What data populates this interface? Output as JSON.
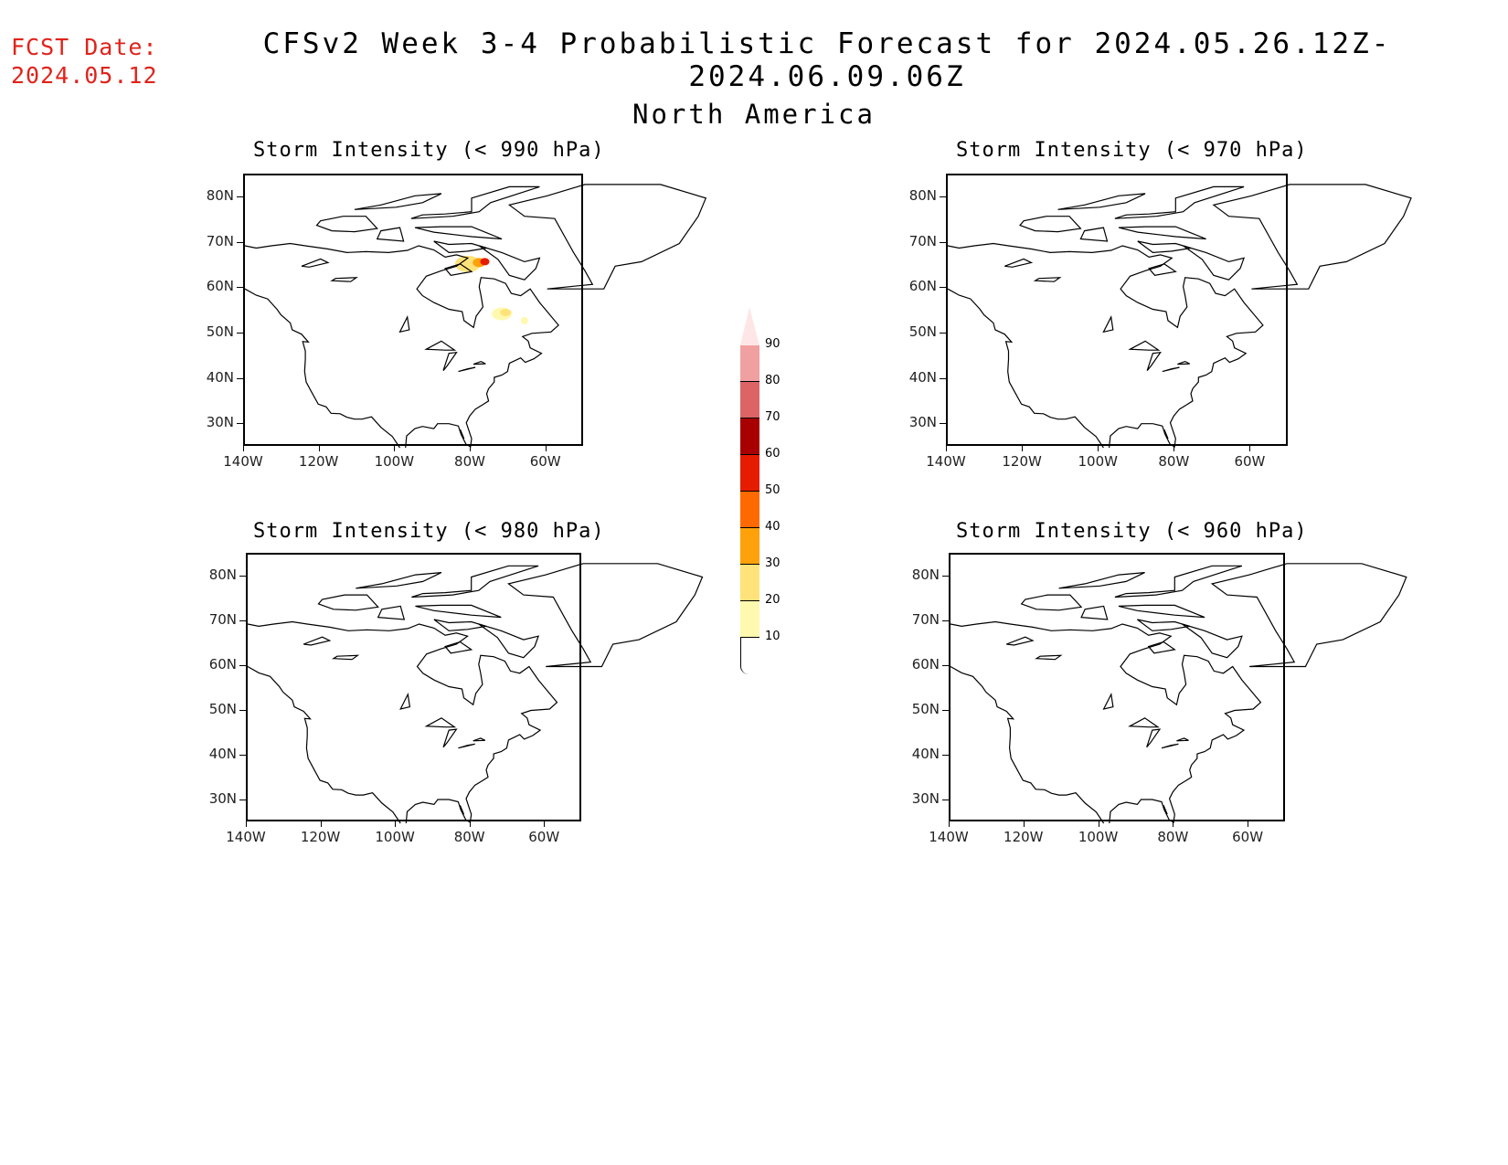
{
  "header": {
    "fcst_label": "FCST Date:",
    "fcst_date": "2024.05.12",
    "title": "CFSv2 Week 3-4 Probabilistic Forecast for 2024.05.26.12Z-2024.06.09.06Z",
    "region": "North America"
  },
  "panels": [
    {
      "title": "Storm Intensity (< 990 hPa)",
      "has_data": true
    },
    {
      "title": "Storm Intensity (< 970 hPa)",
      "has_data": false
    },
    {
      "title": "Storm Intensity (< 980 hPa)",
      "has_data": false
    },
    {
      "title": "Storm Intensity (< 960 hPa)",
      "has_data": false
    }
  ],
  "axes": {
    "lat_labels": [
      "80N",
      "70N",
      "60N",
      "50N",
      "40N",
      "30N"
    ],
    "lon_labels": [
      "140W",
      "120W",
      "100W",
      "80W",
      "60W"
    ],
    "lat_range": [
      25,
      85
    ],
    "lon_range": [
      -140,
      -50
    ]
  },
  "colorbar": {
    "levels": [
      "10",
      "20",
      "30",
      "40",
      "50",
      "60",
      "70",
      "80",
      "90"
    ],
    "colors": [
      "#fff9b0",
      "#ffe37a",
      "#ffa10a",
      "#ff6a00",
      "#e61c00",
      "#a80000",
      "#dc6464",
      "#f0a0a0",
      "#ffe6e6"
    ]
  }
}
